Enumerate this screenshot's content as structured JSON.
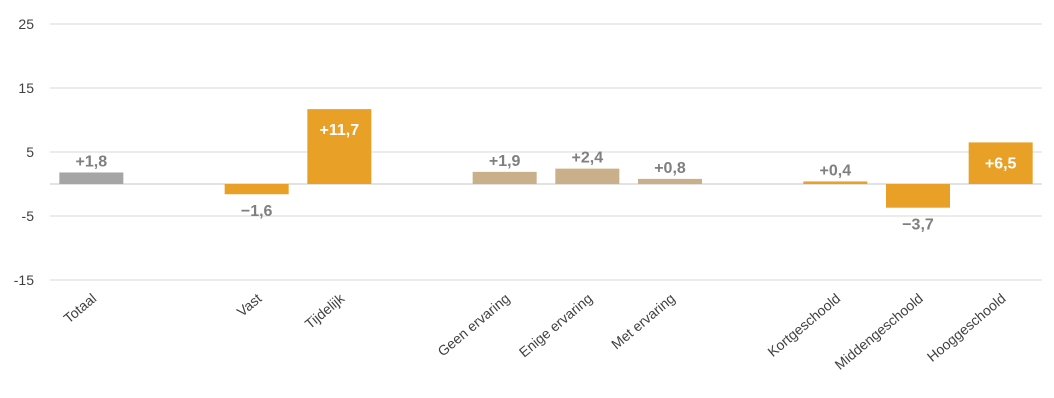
{
  "chart_data": {
    "type": "bar",
    "title": "",
    "xlabel": "",
    "ylabel": "",
    "ylim": [
      -15,
      25
    ],
    "yticks": [
      25,
      15,
      5,
      -5,
      -15
    ],
    "grid": true,
    "legend": "none",
    "categories": [
      "Totaal",
      "",
      "Vast",
      "Tijdelijk",
      "",
      "Geen ervaring",
      "Enige ervaring",
      "Met ervaring",
      "",
      "Kortgeschoold",
      "Middengeschoold",
      "Hooggeschoold"
    ],
    "values": [
      1.8,
      null,
      -1.6,
      11.7,
      null,
      1.9,
      2.4,
      0.8,
      null,
      0.4,
      -3.7,
      6.5
    ],
    "labels": [
      "+1,8",
      "",
      "−1,6",
      "+11,7",
      "",
      "+1,9",
      "+2,4",
      "+0,8",
      "",
      "+0,4",
      "−3,7",
      "+6,5"
    ],
    "bar_colors": [
      "#a5a5a5",
      "",
      "#e8a026",
      "#e8a026",
      "",
      "#c9b08a",
      "#c9b08a",
      "#c9b08a",
      "",
      "#e8a026",
      "#e8a026",
      "#e8a026"
    ],
    "label_inside": [
      false,
      false,
      false,
      true,
      false,
      false,
      false,
      false,
      false,
      false,
      false,
      true
    ],
    "colors": {
      "grid": "#d9d9d9",
      "label_outside": "#7f7f7f",
      "label_inside": "#ffffff"
    }
  }
}
